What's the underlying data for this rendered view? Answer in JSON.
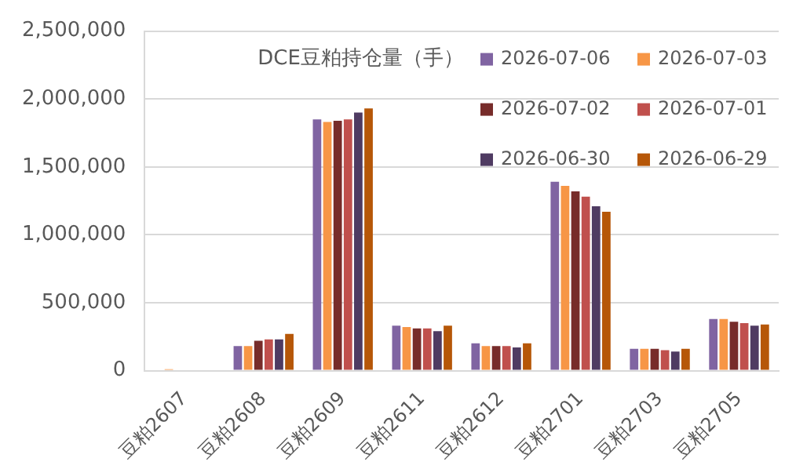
{
  "chart_data": {
    "type": "bar",
    "title": "DCE豆粕持仓量（手）",
    "categories": [
      "豆粕2607",
      "豆粕2608",
      "豆粕2609",
      "豆粕2611",
      "豆粕2612",
      "豆粕2701",
      "豆粕2703",
      "豆粕2705"
    ],
    "series": [
      {
        "name": "2026-07-06",
        "color": "#8064a2",
        "values": [
          0,
          180000,
          1850000,
          330000,
          200000,
          1390000,
          160000,
          380000
        ]
      },
      {
        "name": "2026-07-03",
        "color": "#f79646",
        "values": [
          10000,
          180000,
          1830000,
          320000,
          180000,
          1360000,
          160000,
          380000
        ]
      },
      {
        "name": "2026-07-02",
        "color": "#772c2a",
        "values": [
          0,
          220000,
          1840000,
          310000,
          180000,
          1320000,
          160000,
          360000
        ]
      },
      {
        "name": "2026-07-01",
        "color": "#c0504d",
        "values": [
          0,
          230000,
          1850000,
          310000,
          180000,
          1280000,
          150000,
          350000
        ]
      },
      {
        "name": "2026-06-30",
        "color": "#4f3b62",
        "values": [
          0,
          230000,
          1900000,
          290000,
          170000,
          1210000,
          140000,
          330000
        ]
      },
      {
        "name": "2026-06-29",
        "color": "#b65708",
        "values": [
          0,
          270000,
          1930000,
          330000,
          200000,
          1170000,
          160000,
          340000
        ]
      }
    ],
    "ylim": [
      0,
      2500000
    ],
    "yticks": [
      0,
      {
        "value": 500000,
        "label": "500,000"
      },
      {
        "value": 1000000,
        "label": "1,000,000"
      },
      {
        "value": 1500000,
        "label": "1,500,000"
      },
      {
        "value": 2000000,
        "label": "2,000,000"
      },
      {
        "value": 2500000,
        "label": "2,500,000"
      }
    ],
    "grid": "y",
    "legend": "top right"
  }
}
